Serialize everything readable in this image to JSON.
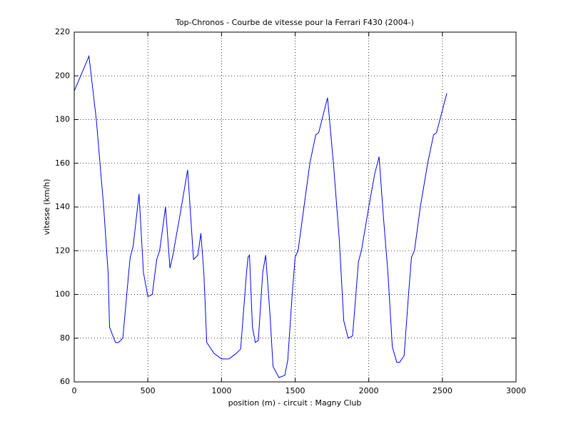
{
  "chart_data": {
    "type": "line",
    "title": "Top-Chronos - Courbe de vitesse pour la Ferrari F430 (2004-)",
    "xlabel": "position (m) - circuit : Magny Club",
    "ylabel": "vitesse (km/h)",
    "x": [
      0,
      100,
      150,
      200,
      230,
      240,
      280,
      300,
      330,
      370,
      380,
      400,
      440,
      470,
      500,
      530,
      560,
      580,
      620,
      650,
      670,
      720,
      770,
      810,
      840,
      860,
      880,
      900,
      950,
      1000,
      1050,
      1100,
      1130,
      1170,
      1180,
      1190,
      1210,
      1230,
      1250,
      1280,
      1300,
      1330,
      1350,
      1390,
      1430,
      1450,
      1480,
      1500,
      1520,
      1560,
      1600,
      1640,
      1660,
      1720,
      1760,
      1800,
      1830,
      1860,
      1890,
      1930,
      1950,
      2000,
      2040,
      2070,
      2100,
      2130,
      2160,
      2190,
      2210,
      2240,
      2270,
      2290,
      2310,
      2350,
      2400,
      2440,
      2460,
      2530
    ],
    "series": [
      {
        "name": "vitesse",
        "color": "#0000ff",
        "values": [
          193,
          209,
          180,
          140,
          110,
          85,
          78,
          78,
          80,
          110,
          117,
          122,
          146,
          110,
          99,
          100,
          116,
          120,
          140,
          112,
          118,
          137,
          157,
          116,
          118,
          128,
          110,
          78,
          73,
          70.5,
          70.5,
          73,
          75,
          110,
          117,
          118,
          85,
          78,
          79,
          110,
          118,
          90,
          67,
          62,
          63,
          70,
          100,
          117,
          120,
          140,
          160,
          173,
          174,
          190,
          160,
          125,
          88,
          80,
          81,
          115,
          120,
          140,
          155,
          163,
          135,
          110,
          76,
          69,
          69,
          72,
          100,
          117,
          120,
          140,
          160,
          173,
          174,
          192
        ]
      }
    ],
    "xlim": [
      0,
      3000
    ],
    "xticks": [
      0,
      500,
      1000,
      1500,
      2000,
      2500,
      3000
    ],
    "ylim": [
      60,
      220
    ],
    "yticks": [
      60,
      80,
      100,
      120,
      140,
      160,
      180,
      200,
      220
    ],
    "grid": true
  }
}
